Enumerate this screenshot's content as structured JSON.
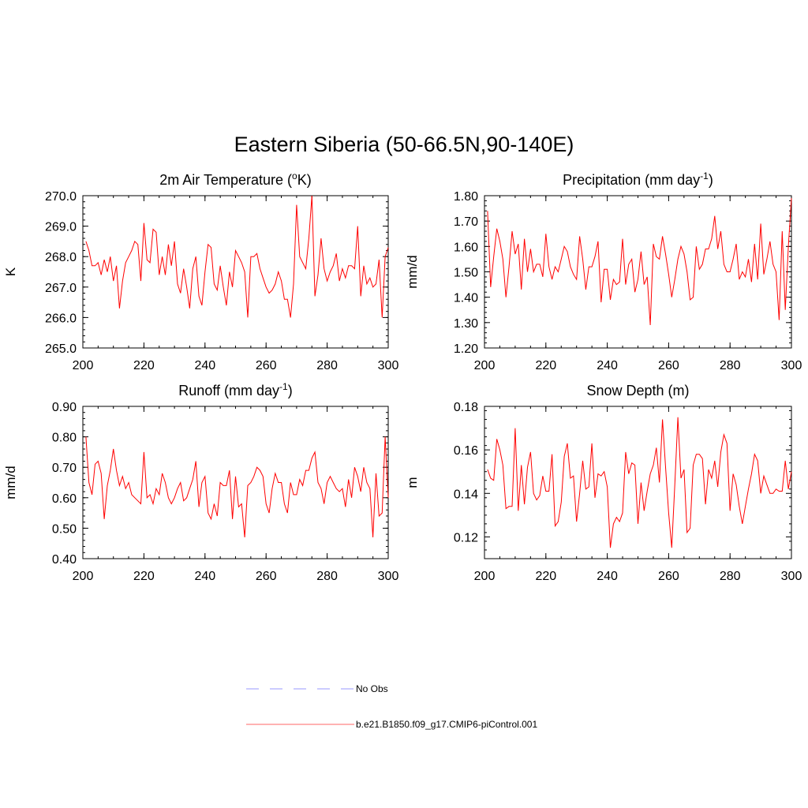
{
  "title": "Eastern Siberia (50-66.5N,90-140E)",
  "legend": [
    {
      "label": "No Obs",
      "color": "#9999ff",
      "dash": "dashed"
    },
    {
      "label": "b.e21.B1850.f09_g17.CMIP6-piControl.001",
      "color": "#ff6666",
      "dash": "solid"
    }
  ],
  "chart_data": [
    {
      "type": "line",
      "title": "2m Air Temperature (oK)",
      "title_parts": {
        "pre": "2m Air Temperature (",
        "sup": "o",
        "post": "K)"
      },
      "xlabel": "",
      "ylabel": "K",
      "xlim": [
        200,
        300
      ],
      "ylim": [
        265,
        270
      ],
      "xticks": [
        200,
        220,
        240,
        260,
        280,
        300
      ],
      "xtick_labels": [
        "200",
        "220",
        "240",
        "260",
        "280",
        "300"
      ],
      "yticks": [
        265,
        266,
        267,
        268,
        269,
        270
      ],
      "ytick_labels": [
        "265.0",
        "266.0",
        "267.0",
        "268.0",
        "269.0",
        "270.0"
      ],
      "yminor": 0.2,
      "series": [
        {
          "name": "b.e21.B1850.f09_g17.CMIP6-piControl.001",
          "color": "#ff0000",
          "x_start": 201,
          "x_step": 1,
          "values": [
            268.5,
            268.2,
            267.7,
            267.7,
            267.8,
            267.4,
            267.9,
            267.5,
            268.0,
            267.2,
            267.7,
            266.3,
            267.2,
            267.8,
            268.0,
            268.2,
            268.5,
            268.4,
            267.2,
            269.1,
            267.9,
            267.8,
            268.9,
            268.8,
            267.4,
            268.0,
            267.4,
            268.4,
            267.7,
            268.5,
            267.1,
            266.8,
            267.6,
            267.0,
            266.3,
            267.6,
            268.0,
            266.7,
            266.4,
            267.5,
            268.4,
            268.3,
            267.1,
            266.9,
            267.7,
            267.0,
            266.4,
            267.5,
            267.0,
            268.2,
            268.0,
            267.8,
            267.5,
            266.0,
            268.0,
            268.0,
            268.1,
            267.6,
            267.3,
            267.0,
            266.8,
            266.9,
            267.1,
            267.5,
            267.2,
            266.6,
            266.6,
            266.0,
            267.1,
            269.7,
            268.0,
            267.8,
            267.6,
            268.6,
            270.0,
            266.7,
            267.4,
            268.6,
            267.6,
            267.2,
            267.5,
            267.7,
            268.1,
            267.2,
            267.6,
            267.3,
            267.7,
            267.7,
            267.6,
            269.0,
            266.7,
            267.7,
            267.1,
            267.3,
            267.0,
            267.1,
            267.9,
            266.0,
            268.0,
            268.3
          ]
        }
      ]
    },
    {
      "type": "line",
      "title": "Precipitation (mm day-1)",
      "title_parts": {
        "pre": "Precipitation (mm day",
        "sup": "-1",
        "post": ")"
      },
      "xlabel": "",
      "ylabel": "mm/d",
      "xlim": [
        200,
        300
      ],
      "ylim": [
        1.2,
        1.8
      ],
      "xticks": [
        200,
        220,
        240,
        260,
        280,
        300
      ],
      "xtick_labels": [
        "200",
        "220",
        "240",
        "260",
        "280",
        "300"
      ],
      "yticks": [
        1.2,
        1.3,
        1.4,
        1.5,
        1.6,
        1.7,
        1.8
      ],
      "ytick_labels": [
        "1.20",
        "1.30",
        "1.40",
        "1.50",
        "1.60",
        "1.70",
        "1.80"
      ],
      "yminor": 0.02,
      "series": [
        {
          "name": "b.e21.B1850.f09_g17.CMIP6-piControl.001",
          "color": "#ff0000",
          "x_start": 201,
          "x_step": 1,
          "values": [
            1.74,
            1.44,
            1.56,
            1.67,
            1.62,
            1.55,
            1.4,
            1.52,
            1.66,
            1.57,
            1.61,
            1.43,
            1.63,
            1.5,
            1.59,
            1.5,
            1.53,
            1.53,
            1.48,
            1.65,
            1.52,
            1.47,
            1.52,
            1.5,
            1.55,
            1.6,
            1.58,
            1.52,
            1.49,
            1.47,
            1.64,
            1.55,
            1.43,
            1.52,
            1.52,
            1.56,
            1.62,
            1.38,
            1.51,
            1.51,
            1.39,
            1.47,
            1.45,
            1.46,
            1.63,
            1.45,
            1.53,
            1.55,
            1.42,
            1.47,
            1.58,
            1.45,
            1.48,
            1.29,
            1.61,
            1.56,
            1.55,
            1.64,
            1.57,
            1.49,
            1.4,
            1.47,
            1.55,
            1.6,
            1.57,
            1.5,
            1.39,
            1.4,
            1.6,
            1.51,
            1.53,
            1.59,
            1.59,
            1.63,
            1.72,
            1.59,
            1.66,
            1.53,
            1.5,
            1.5,
            1.55,
            1.61,
            1.47,
            1.5,
            1.48,
            1.55,
            1.46,
            1.61,
            1.47,
            1.69,
            1.49,
            1.55,
            1.62,
            1.53,
            1.5,
            1.31,
            1.66,
            1.35,
            1.6,
            1.79
          ]
        }
      ]
    },
    {
      "type": "line",
      "title": "Runoff (mm day-1)",
      "title_parts": {
        "pre": "Runoff (mm day",
        "sup": "-1",
        "post": ")"
      },
      "xlabel": "",
      "ylabel": "mm/d",
      "xlim": [
        200,
        300
      ],
      "ylim": [
        0.4,
        0.9
      ],
      "xticks": [
        200,
        220,
        240,
        260,
        280,
        300
      ],
      "xtick_labels": [
        "200",
        "220",
        "240",
        "260",
        "280",
        "300"
      ],
      "yticks": [
        0.4,
        0.5,
        0.6,
        0.7,
        0.8,
        0.9
      ],
      "ytick_labels": [
        "0.40",
        "0.50",
        "0.60",
        "0.70",
        "0.80",
        "0.90"
      ],
      "yminor": 0.02,
      "series": [
        {
          "name": "b.e21.B1850.f09_g17.CMIP6-piControl.001",
          "color": "#ff0000",
          "x_start": 201,
          "x_step": 1,
          "values": [
            0.8,
            0.65,
            0.61,
            0.71,
            0.72,
            0.68,
            0.53,
            0.64,
            0.69,
            0.76,
            0.69,
            0.64,
            0.67,
            0.63,
            0.65,
            0.61,
            0.6,
            0.59,
            0.58,
            0.75,
            0.6,
            0.61,
            0.58,
            0.63,
            0.61,
            0.68,
            0.65,
            0.6,
            0.58,
            0.6,
            0.63,
            0.65,
            0.59,
            0.6,
            0.63,
            0.66,
            0.72,
            0.57,
            0.65,
            0.67,
            0.55,
            0.53,
            0.58,
            0.54,
            0.65,
            0.64,
            0.64,
            0.69,
            0.53,
            0.67,
            0.57,
            0.58,
            0.47,
            0.64,
            0.65,
            0.67,
            0.7,
            0.69,
            0.67,
            0.58,
            0.55,
            0.63,
            0.68,
            0.65,
            0.65,
            0.58,
            0.55,
            0.65,
            0.61,
            0.61,
            0.66,
            0.64,
            0.69,
            0.69,
            0.73,
            0.75,
            0.65,
            0.63,
            0.58,
            0.65,
            0.67,
            0.65,
            0.63,
            0.62,
            0.63,
            0.57,
            0.66,
            0.6,
            0.7,
            0.67,
            0.62,
            0.7,
            0.65,
            0.63,
            0.47,
            0.68,
            0.54,
            0.55,
            0.8,
            0.6
          ]
        }
      ]
    },
    {
      "type": "line",
      "title": "Snow Depth (m)",
      "title_parts": {
        "pre": "Snow Depth (m)",
        "sup": "",
        "post": ""
      },
      "xlabel": "",
      "ylabel": "m",
      "xlim": [
        200,
        300
      ],
      "ylim": [
        0.11,
        0.18
      ],
      "xticks": [
        200,
        220,
        240,
        260,
        280,
        300
      ],
      "xtick_labels": [
        "200",
        "220",
        "240",
        "260",
        "280",
        "300"
      ],
      "yticks": [
        0.12,
        0.14,
        0.16,
        0.18
      ],
      "ytick_labels": [
        "0.12",
        "0.14",
        "0.16",
        "0.18"
      ],
      "yminor": 0.004,
      "series": [
        {
          "name": "b.e21.B1850.f09_g17.CMIP6-piControl.001",
          "color": "#ff0000",
          "x_start": 201,
          "x_step": 1,
          "values": [
            0.151,
            0.147,
            0.146,
            0.165,
            0.16,
            0.153,
            0.133,
            0.134,
            0.134,
            0.17,
            0.132,
            0.153,
            0.135,
            0.152,
            0.159,
            0.14,
            0.137,
            0.139,
            0.148,
            0.141,
            0.141,
            0.158,
            0.125,
            0.127,
            0.136,
            0.157,
            0.163,
            0.147,
            0.148,
            0.127,
            0.14,
            0.155,
            0.142,
            0.143,
            0.163,
            0.138,
            0.149,
            0.148,
            0.15,
            0.143,
            0.115,
            0.126,
            0.129,
            0.127,
            0.131,
            0.159,
            0.149,
            0.154,
            0.153,
            0.126,
            0.145,
            0.132,
            0.141,
            0.149,
            0.153,
            0.161,
            0.145,
            0.174,
            0.152,
            0.131,
            0.115,
            0.144,
            0.175,
            0.147,
            0.151,
            0.122,
            0.124,
            0.153,
            0.158,
            0.158,
            0.156,
            0.135,
            0.151,
            0.147,
            0.155,
            0.143,
            0.159,
            0.167,
            0.163,
            0.132,
            0.149,
            0.144,
            0.134,
            0.126,
            0.134,
            0.142,
            0.149,
            0.158,
            0.155,
            0.14,
            0.148,
            0.144,
            0.14,
            0.14,
            0.142,
            0.141,
            0.141,
            0.155,
            0.142,
            0.15
          ]
        }
      ]
    }
  ]
}
